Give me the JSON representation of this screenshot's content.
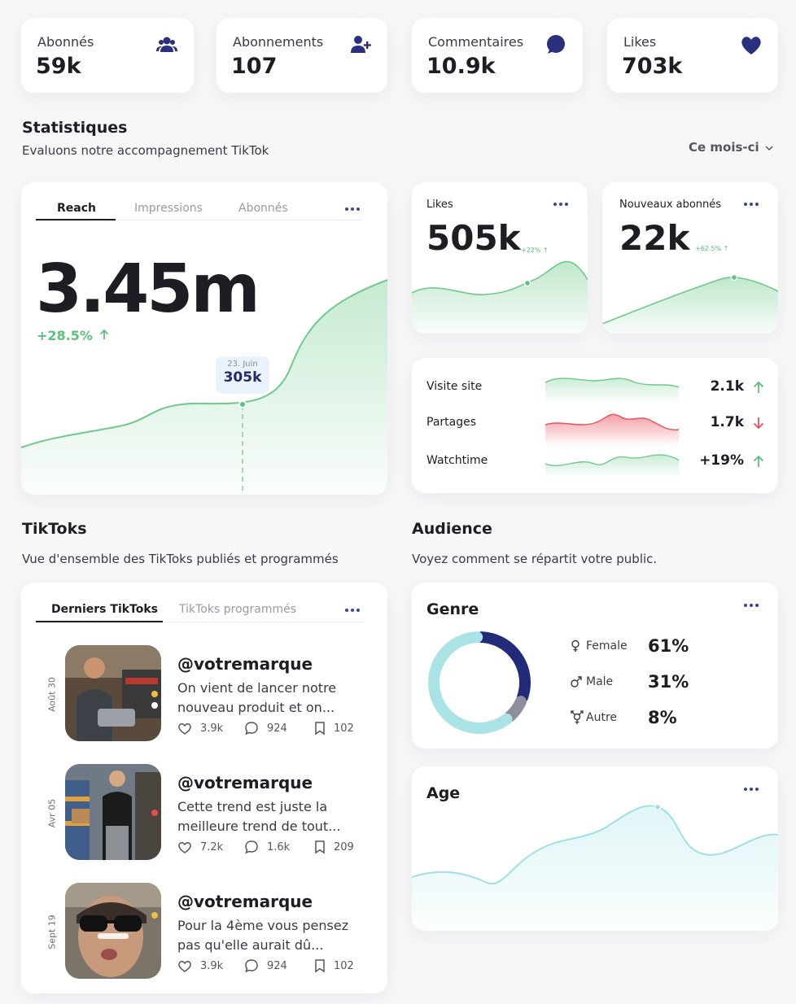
{
  "kpis": [
    {
      "label": "Abonnés",
      "value": "59k",
      "icon": "users-icon"
    },
    {
      "label": "Abonnements",
      "value": "107",
      "icon": "user-add-icon"
    },
    {
      "label": "Commentaires",
      "value": "10.9k",
      "icon": "comment-bubble-icon"
    },
    {
      "label": "Likes",
      "value": "703k",
      "icon": "heart-icon"
    }
  ],
  "stats": {
    "title": "Statistiques",
    "subtitle": "Evaluons notre accompagnement TikTok",
    "period": "Ce mois-ci"
  },
  "reach_card": {
    "tabs": [
      "Reach",
      "Impressions",
      "Abonnés"
    ],
    "active_tab": "Reach",
    "value": "3.45m",
    "change": "+28.5%",
    "tooltip_date": "23. Juin",
    "tooltip_value": "305k"
  },
  "likes_card": {
    "label": "Likes",
    "value": "505k",
    "change": "+22%"
  },
  "followers_card": {
    "label": "Nouveaux abonnés",
    "value": "22k",
    "change": "+62.5%"
  },
  "metrics": [
    {
      "label": "Visite site",
      "value": "2.1k",
      "trend": "up"
    },
    {
      "label": "Partages",
      "value": "1.7k",
      "trend": "down"
    },
    {
      "label": "Watchtime",
      "value": "+19%",
      "trend": "up"
    }
  ],
  "tiktoks": {
    "title": "TikToks",
    "subtitle": "Vue d'ensemble des TikToks publiés et programmés",
    "tabs": [
      "Derniers TikToks",
      "TikToks programmés"
    ],
    "items": [
      {
        "date": "Août 30",
        "handle": "@votremarque",
        "line1": "On vient de lancer notre",
        "line2": "nouveau produit et on...",
        "likes": "3.9k",
        "comments": "924",
        "saves": "102"
      },
      {
        "date": "Avr 05",
        "handle": "@votremarque",
        "line1": "Cette trend est juste la",
        "line2": "meilleure trend de tout...",
        "likes": "7.2k",
        "comments": "1.6k",
        "saves": "209"
      },
      {
        "date": "Sept 19",
        "handle": "@votremarque",
        "line1": "Pour la 4ème vous pensez",
        "line2": "pas qu'elle aurait dû...",
        "likes": "3.9k",
        "comments": "924",
        "saves": "102"
      }
    ]
  },
  "audience": {
    "title": "Audience",
    "subtitle": "Voyez comment se répartit votre public.",
    "genre_title": "Genre",
    "genders": [
      {
        "label": "Female",
        "value": "61%",
        "pct": 61,
        "color": "#a9e3e6",
        "icon": "female-icon"
      },
      {
        "label": "Male",
        "value": "31%",
        "pct": 31,
        "color": "#222b7a",
        "icon": "male-icon"
      },
      {
        "label": "Autre",
        "value": "8%",
        "pct": 8,
        "color": "#8e8f9c",
        "icon": "transgender-icon"
      }
    ],
    "age_title": "Age"
  },
  "colors": {
    "accent": "#2a2f7e",
    "green": "#59c27c",
    "red": "#e8505b",
    "teal": "#9fe0e4"
  }
}
